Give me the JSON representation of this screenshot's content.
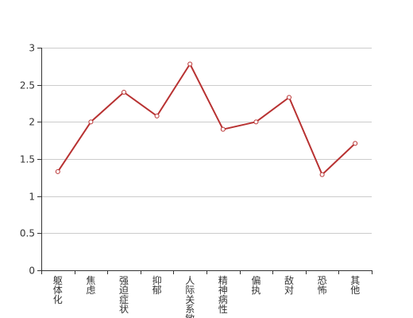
{
  "chart_data": {
    "type": "line",
    "categories": [
      "躯体化",
      "焦虑",
      "强迫症状",
      "抑郁",
      "人际关系敏感",
      "精神病性",
      "偏执",
      "敌对",
      "恐怖",
      "其他"
    ],
    "series": [
      {
        "values": [
          1.33,
          2.0,
          2.4,
          2.08,
          2.78,
          1.9,
          2.0,
          2.33,
          1.29,
          1.71
        ]
      }
    ],
    "ylim": [
      0,
      3
    ],
    "yticks": [
      0,
      0.5,
      1,
      1.5,
      2,
      2.5,
      3
    ],
    "grid": true,
    "legend": "none"
  },
  "colors": {
    "line": "#b83232",
    "grid": "#cccccc",
    "axis": "#333333",
    "marker_fill": "#ffffff"
  }
}
